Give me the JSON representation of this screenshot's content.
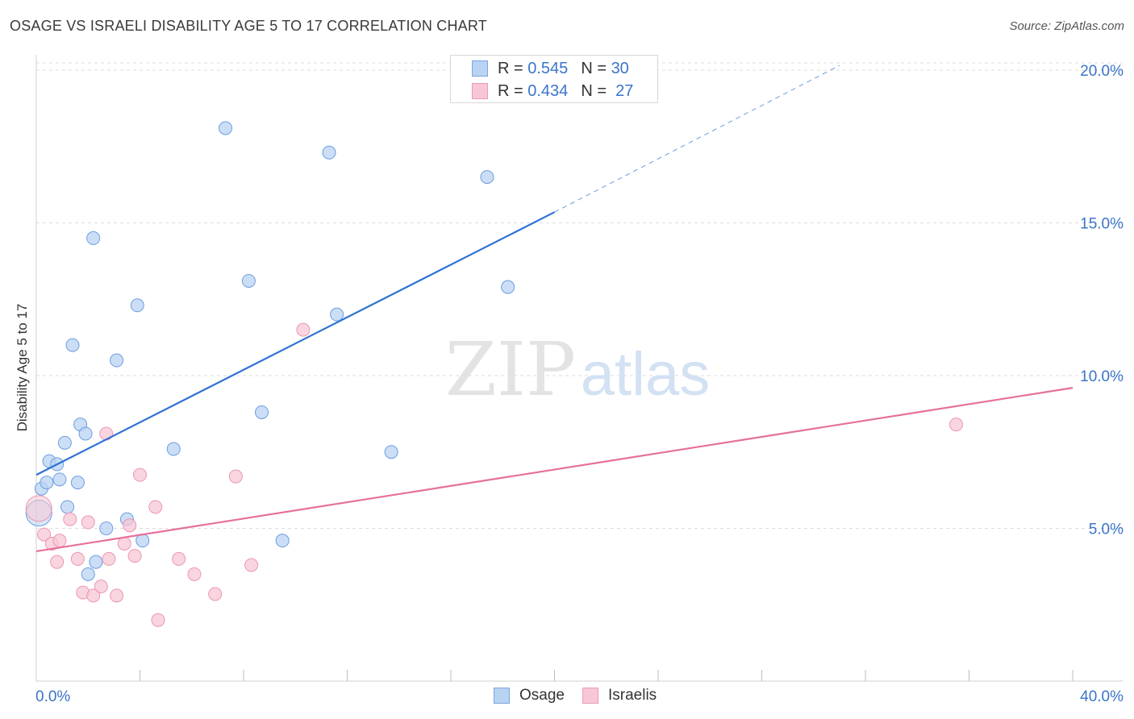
{
  "chart_data": {
    "type": "scatter",
    "title": "OSAGE VS ISRAELI DISABILITY AGE 5 TO 17 CORRELATION CHART",
    "source": "Source: ZipAtlas.com",
    "xlabel": "",
    "ylabel": "Disability Age 5 to 17",
    "xlim": [
      0,
      40
    ],
    "ylim": [
      0,
      20.5
    ],
    "x_tick_labels": [
      "0.0%",
      "40.0%"
    ],
    "y_ticks": [
      5,
      10,
      15,
      20
    ],
    "y_tick_labels": [
      "5.0%",
      "10.0%",
      "15.0%",
      "20.0%"
    ],
    "watermark": {
      "part1": "ZIP",
      "part2": "atlas"
    },
    "legend": {
      "rows": [
        {
          "r_label": "R = ",
          "r_value": "0.545",
          "n_label": "N = ",
          "n_value": "30"
        },
        {
          "r_label": "R = ",
          "r_value": "0.434",
          "n_label": "N = ",
          "n_value": "27"
        }
      ]
    },
    "series": [
      {
        "name": "Osage",
        "color": "#6b9ee0",
        "fill": "#b9d3f3",
        "line_color": "#2d72d2",
        "trend": {
          "x0": 0,
          "y0": 6.75,
          "x1": 20,
          "y1": 15.35,
          "x_dash_end": 31,
          "y_dash_end": 20.15
        },
        "points": [
          [
            0.1,
            5.5
          ],
          [
            0.2,
            6.3
          ],
          [
            0.4,
            6.5
          ],
          [
            0.5,
            7.2
          ],
          [
            0.8,
            7.1
          ],
          [
            0.9,
            6.6
          ],
          [
            1.1,
            7.8
          ],
          [
            1.2,
            5.7
          ],
          [
            1.4,
            11.0
          ],
          [
            1.6,
            6.5
          ],
          [
            1.7,
            8.4
          ],
          [
            1.9,
            8.1
          ],
          [
            2.0,
            3.5
          ],
          [
            2.2,
            14.5
          ],
          [
            2.3,
            3.9
          ],
          [
            2.7,
            5.0
          ],
          [
            3.1,
            10.5
          ],
          [
            3.5,
            5.3
          ],
          [
            3.9,
            12.3
          ],
          [
            4.1,
            4.6
          ],
          [
            5.3,
            7.6
          ],
          [
            7.3,
            18.1
          ],
          [
            8.2,
            13.1
          ],
          [
            8.7,
            8.8
          ],
          [
            9.5,
            4.6
          ],
          [
            11.3,
            17.3
          ],
          [
            11.6,
            12.0
          ],
          [
            13.7,
            7.5
          ],
          [
            17.4,
            16.5
          ],
          [
            18.2,
            12.9
          ]
        ]
      },
      {
        "name": "Israelis",
        "color": "#eb97b1",
        "fill": "#f7c7d6",
        "line_color": "#e6709a",
        "trend": {
          "x0": 0,
          "y0": 4.25,
          "x1": 40,
          "y1": 9.6
        },
        "points": [
          [
            0.1,
            5.65
          ],
          [
            0.3,
            4.8
          ],
          [
            0.6,
            4.5
          ],
          [
            0.8,
            3.9
          ],
          [
            0.9,
            4.6
          ],
          [
            1.3,
            5.3
          ],
          [
            1.6,
            4.0
          ],
          [
            1.8,
            2.9
          ],
          [
            2.0,
            5.2
          ],
          [
            2.2,
            2.8
          ],
          [
            2.5,
            3.1
          ],
          [
            2.7,
            8.1
          ],
          [
            2.8,
            4.0
          ],
          [
            3.1,
            2.8
          ],
          [
            3.4,
            4.5
          ],
          [
            3.6,
            5.1
          ],
          [
            3.8,
            4.1
          ],
          [
            4.0,
            6.75
          ],
          [
            4.6,
            5.7
          ],
          [
            4.7,
            2.0
          ],
          [
            5.5,
            4.0
          ],
          [
            6.1,
            3.5
          ],
          [
            6.9,
            2.85
          ],
          [
            7.7,
            6.7
          ],
          [
            8.3,
            3.8
          ],
          [
            10.3,
            11.5
          ],
          [
            35.5,
            8.4
          ]
        ]
      }
    ]
  }
}
